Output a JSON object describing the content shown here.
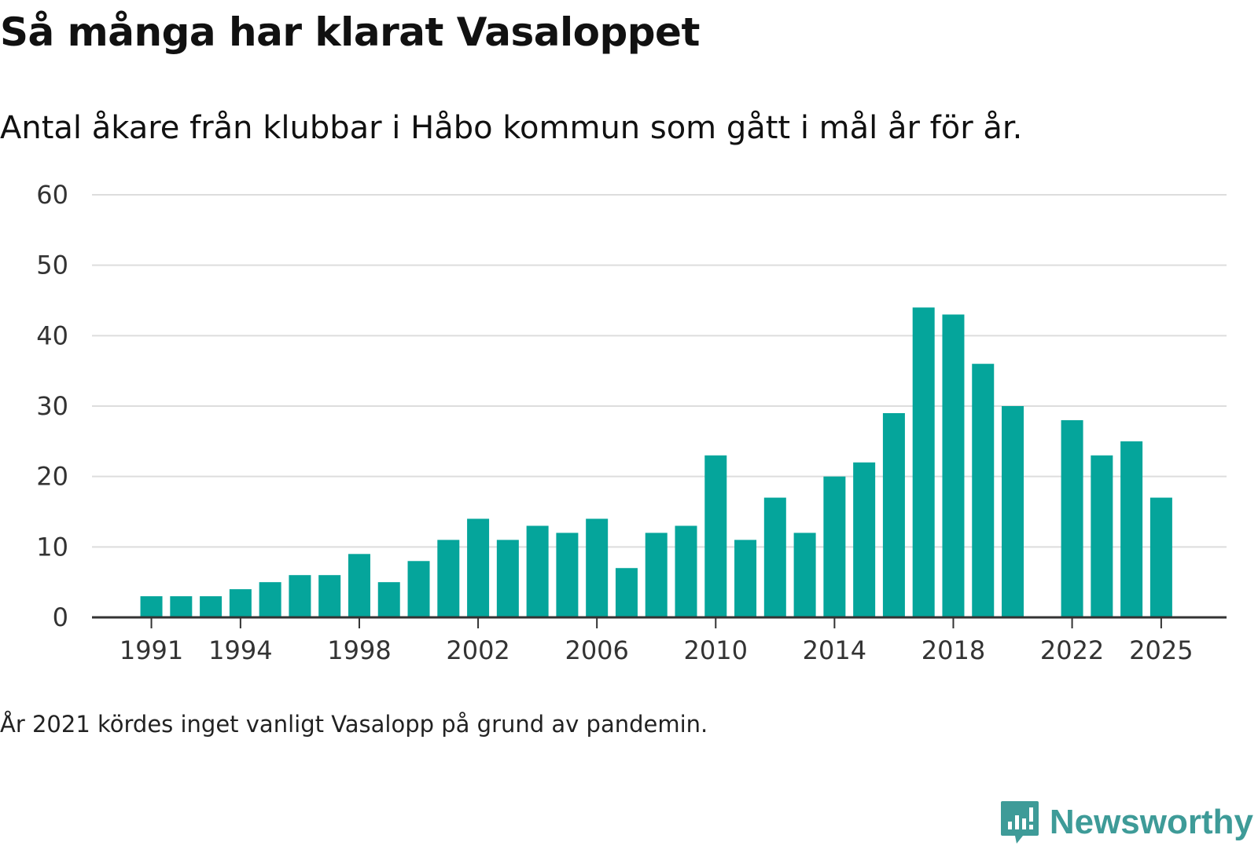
{
  "colors": {
    "bar": "#05a59b",
    "grid": "#dddddd",
    "axis": "#333333",
    "brand": "#3e9b98"
  },
  "chart_data": {
    "type": "bar",
    "title": "Så många har klarat Vasaloppet",
    "subtitle": "Antal åkare från klubbar i Håbo kommun som gått i mål år för år.",
    "xlabel": "",
    "ylabel": "",
    "ylim": [
      0,
      60
    ],
    "yticks": [
      "0",
      "10",
      "20",
      "30",
      "40",
      "50",
      "60"
    ],
    "xticks": [
      "1991",
      "1994",
      "1998",
      "2002",
      "2006",
      "2010",
      "2014",
      "2018",
      "2022",
      "2025"
    ],
    "x": [
      1991,
      1992,
      1993,
      1994,
      1995,
      1996,
      1997,
      1998,
      1999,
      2000,
      2001,
      2002,
      2003,
      2004,
      2005,
      2006,
      2007,
      2008,
      2009,
      2010,
      2011,
      2012,
      2013,
      2014,
      2015,
      2016,
      2017,
      2018,
      2019,
      2020,
      2022,
      2023,
      2024,
      2025
    ],
    "values": [
      3,
      3,
      3,
      4,
      5,
      6,
      6,
      9,
      5,
      8,
      11,
      14,
      11,
      13,
      12,
      14,
      7,
      12,
      13,
      23,
      11,
      17,
      12,
      20,
      22,
      29,
      44,
      43,
      36,
      30,
      28,
      23,
      25,
      17
    ],
    "grid": true,
    "legend": "none"
  },
  "footnote": "År 2021 kördes inget vanligt Vasalopp på grund av pandemin.",
  "brand": {
    "name": "Newsworthy",
    "logo_icon": "newsworthy-logo-icon"
  }
}
